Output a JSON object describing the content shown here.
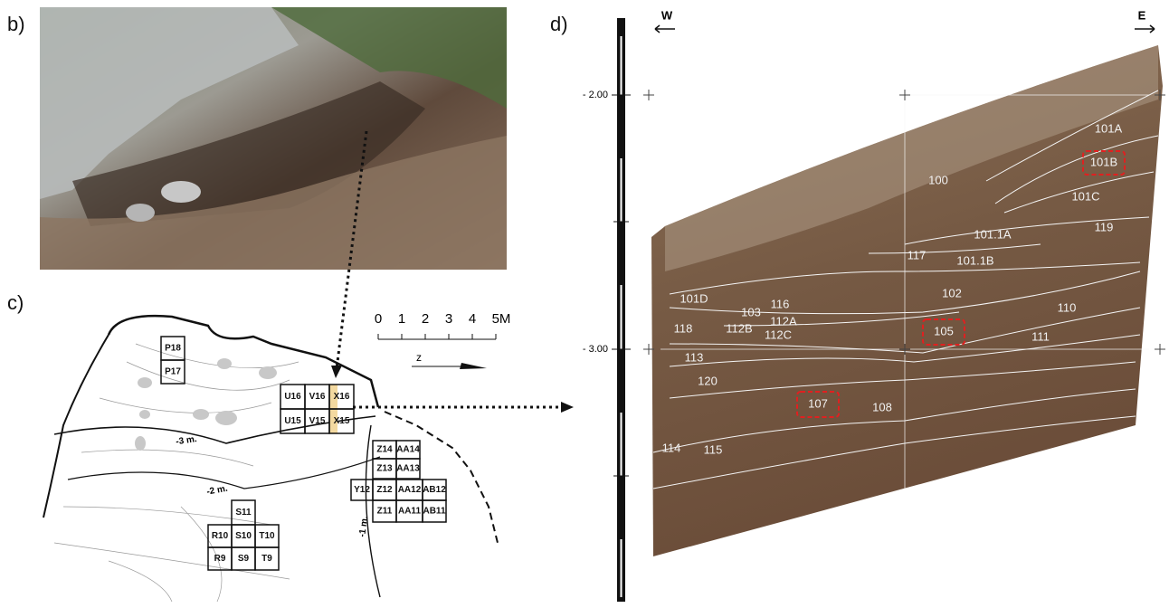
{
  "panels": {
    "b": {
      "label": "b)"
    },
    "c": {
      "label": "c)",
      "scale": [
        "0",
        "1",
        "2",
        "3",
        "4",
        "5M"
      ],
      "north": "z",
      "contours": [
        "-3 m.",
        "-2 m.",
        "-1 m."
      ],
      "cells": [
        "P18",
        "P17",
        "U16",
        "V16",
        "X16",
        "U15",
        "V15",
        "X15",
        "Z14",
        "AA14",
        "Z13",
        "AA13",
        "Y12",
        "Z12",
        "AA12",
        "AB12",
        "Z11",
        "AA11",
        "AB11",
        "S11",
        "R10",
        "S10",
        "T10",
        "R9",
        "S9",
        "T9"
      ]
    },
    "d": {
      "label": "d)",
      "west": "W",
      "east": "E",
      "depths": [
        "- 2.00",
        "- 3.00"
      ],
      "layers": [
        "101A",
        "101B",
        "100",
        "101C",
        "119",
        "101.1A",
        "117",
        "101.1B",
        "102",
        "101D",
        "103",
        "116",
        "118",
        "112B",
        "112A",
        "112C",
        "105",
        "110",
        "111",
        "113",
        "120",
        "107",
        "108",
        "114",
        "115"
      ]
    }
  }
}
